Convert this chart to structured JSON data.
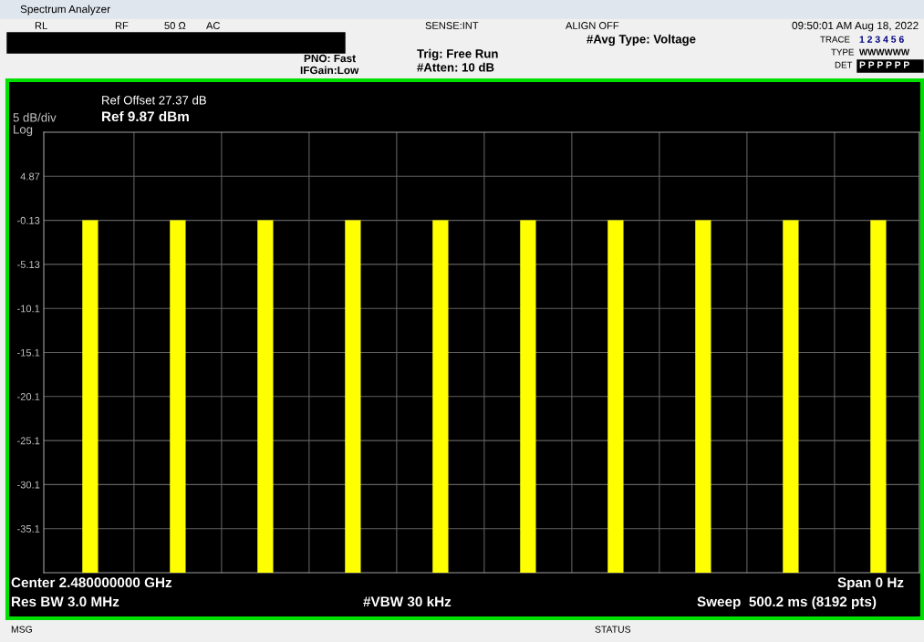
{
  "chart_data": {
    "type": "bar",
    "title": "Spectrum Analyzer",
    "categories": [
      null,
      null,
      null,
      null,
      null,
      null,
      null,
      null,
      null,
      null
    ],
    "base": [
      -40.13,
      -40.13,
      -40.13,
      -40.13,
      -40.13,
      -40.13,
      -40.13,
      -40.13,
      -40.13,
      -40.13
    ],
    "values": [
      40.0,
      40.0,
      40.0,
      40.0,
      40.0,
      40.0,
      40.0,
      40.0,
      40.0,
      40.0
    ],
    "color": "#ffff00",
    "ylim": [
      -40.13,
      9.87
    ],
    "yticks": [
      {
        "value": 4.87,
        "label": "4.87"
      },
      {
        "value": -0.13,
        "label": "-0.13"
      },
      {
        "value": -5.13,
        "label": "-5.13"
      },
      {
        "value": -10.13,
        "label": "-10.1"
      },
      {
        "value": -15.13,
        "label": "-15.1"
      },
      {
        "value": -20.13,
        "label": "-20.1"
      },
      {
        "value": -25.13,
        "label": "-25.1"
      },
      {
        "value": -30.13,
        "label": "-30.1"
      },
      {
        "value": -35.13,
        "label": "-35.1"
      }
    ],
    "grid": true,
    "tick_labels": "y",
    "annotations": [
      "RL",
      "RF",
      "50 Ω",
      "AC",
      "SENSE:INT",
      "ALIGN OFF",
      "09:50:01 AM Aug 18, 2022",
      "#Avg Type: Voltage",
      "PNO: Fast",
      "IFGain:Low",
      "Trig: Free Run",
      "#Atten: 10 dB",
      "TRACE",
      "1 2 3 4 5 6",
      "TYPE",
      "WWWWWW",
      "DET",
      "P P P P P P",
      "Ref Offset 27.37 dB",
      "Ref 9.87 dBm",
      "5 dB/div",
      "Log",
      "Center 2.480000000 GHz",
      "Res BW 3.0 MHz",
      "#VBW 30 kHz",
      "Span 0 Hz",
      "Sweep  500.2 ms (8192 pts)",
      "MSG",
      "STATUS"
    ]
  }
}
